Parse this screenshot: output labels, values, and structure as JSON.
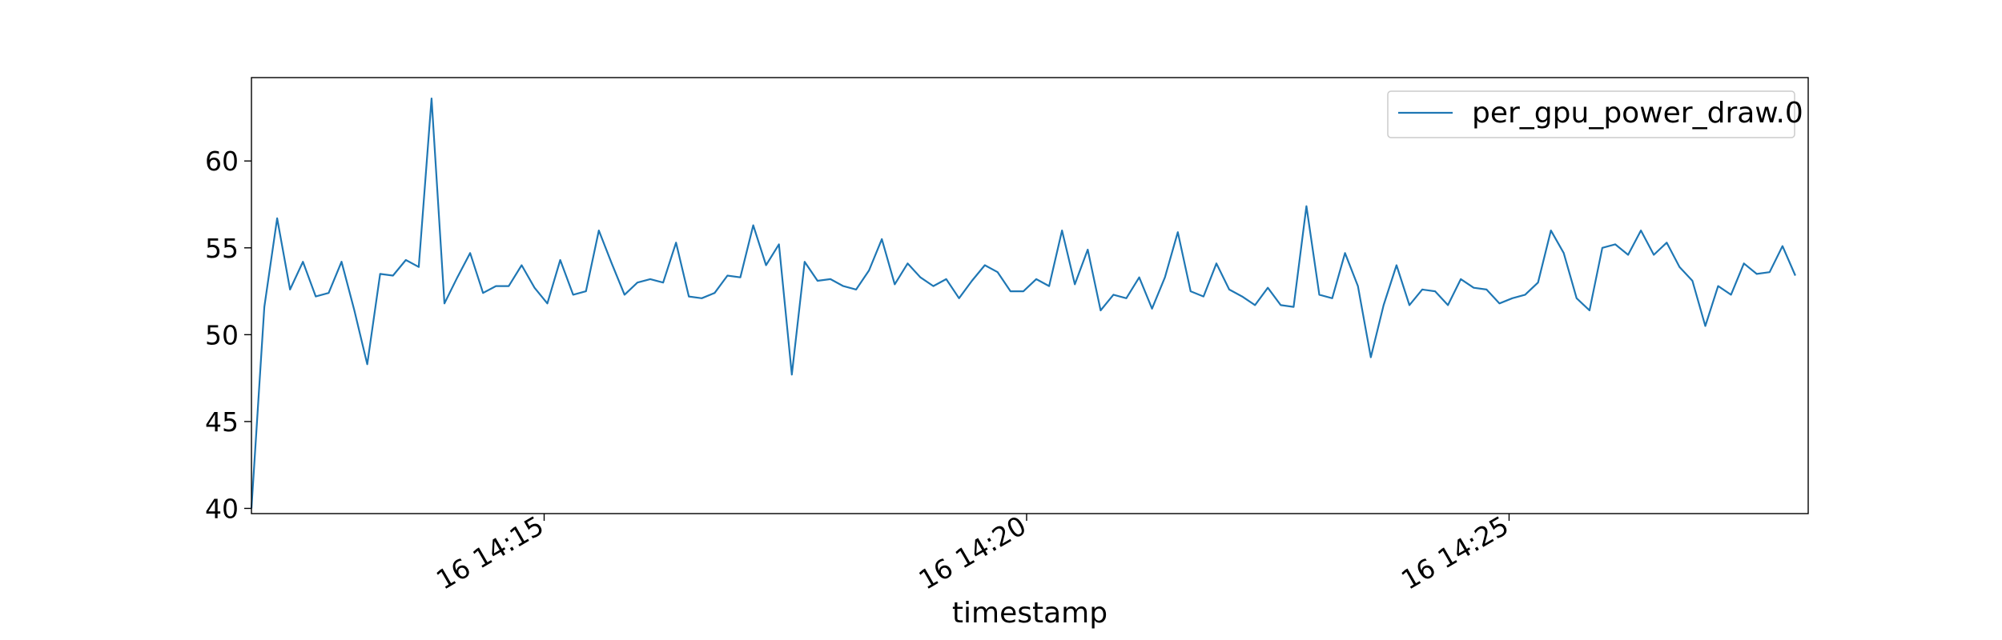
{
  "chart_data": {
    "type": "line",
    "xlabel": "timestamp",
    "ylabel": "",
    "ylim": [
      39.7,
      64.8
    ],
    "xlim": [
      "2024-01-16T14:11:58",
      "2024-01-16T14:28:06"
    ],
    "yticks": [
      40,
      45,
      50,
      55,
      60
    ],
    "xticks": [
      {
        "t": "2024-01-16T14:15:00",
        "label": "16 14:15"
      },
      {
        "t": "2024-01-16T14:20:00",
        "label": "16 14:20"
      },
      {
        "t": "2024-01-16T14:25:00",
        "label": "16 14:25"
      }
    ],
    "grid": false,
    "legend_position": "top-right",
    "color": "#1f77b4",
    "series": [
      {
        "name": "per_gpu_power_draw.0",
        "t_start": "2024-01-16T14:11:58",
        "t_step_seconds": 8,
        "values": [
          40.0,
          51.6,
          56.7,
          52.6,
          54.2,
          52.2,
          52.4,
          54.2,
          51.4,
          48.3,
          53.5,
          53.4,
          54.3,
          53.9,
          63.6,
          51.8,
          53.3,
          54.7,
          52.4,
          52.8,
          52.8,
          54.0,
          52.7,
          51.8,
          54.3,
          52.3,
          52.5,
          56.0,
          54.1,
          52.3,
          53.0,
          53.2,
          53.0,
          55.3,
          52.2,
          52.1,
          52.4,
          53.4,
          53.3,
          56.3,
          54.0,
          55.2,
          47.7,
          54.2,
          53.1,
          53.2,
          52.8,
          52.6,
          53.7,
          55.5,
          52.9,
          54.1,
          53.3,
          52.8,
          53.2,
          52.1,
          53.1,
          54.0,
          53.6,
          52.5,
          52.5,
          53.2,
          52.8,
          56.0,
          52.9,
          54.9,
          51.4,
          52.3,
          52.1,
          53.3,
          51.5,
          53.3,
          55.9,
          52.5,
          52.2,
          54.1,
          52.6,
          52.2,
          51.7,
          52.7,
          51.7,
          51.6,
          57.4,
          52.3,
          52.1,
          54.7,
          52.8,
          48.7,
          51.7,
          54.0,
          51.7,
          52.6,
          52.5,
          51.7,
          53.2,
          52.7,
          52.6,
          51.8,
          52.1,
          52.3,
          53.0,
          56.0,
          54.7,
          52.1,
          51.4,
          55.0,
          55.2,
          54.6,
          56.0,
          54.6,
          55.3,
          53.9,
          53.1,
          50.5,
          52.8,
          52.3,
          54.1,
          53.5,
          53.6,
          55.1,
          53.4
        ]
      }
    ]
  }
}
